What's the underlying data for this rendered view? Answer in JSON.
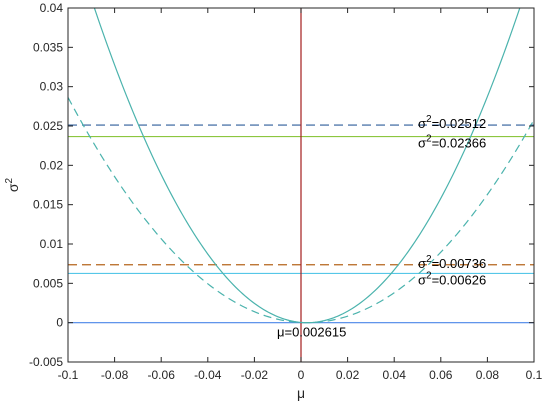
{
  "chart_data": {
    "type": "line",
    "xlabel": "μ",
    "ylabel": "σ²",
    "xlim": [
      -0.1,
      0.1
    ],
    "ylim": [
      -0.005,
      0.04
    ],
    "x_ticks": [
      -0.1,
      -0.08,
      -0.06,
      -0.04,
      -0.02,
      0,
      0.02,
      0.04,
      0.06,
      0.08,
      0.1
    ],
    "x_tick_labels": [
      "-0.1",
      "-0.08",
      "-0.06",
      "-0.04",
      "-0.02",
      "0",
      "0.02",
      "0.04",
      "0.06",
      "0.08",
      "0.1"
    ],
    "y_ticks": [
      -0.005,
      0,
      0.005,
      0.01,
      0.015,
      0.02,
      0.025,
      0.03,
      0.035,
      0.04
    ],
    "y_tick_labels": [
      "-0.005",
      "0",
      "0.005",
      "0.01",
      "0.015",
      "0.02",
      "0.025",
      "0.03",
      "0.035",
      "0.04"
    ],
    "grid": false,
    "curves": [
      {
        "style": "solid",
        "color": "#4bb3ad",
        "vertex_x": 0.002615,
        "coefficient": 4.8
      },
      {
        "style": "dashed",
        "color": "#4bb3ad",
        "vertex_x": 0.002615,
        "coefficient": 2.72
      }
    ],
    "hlines": [
      {
        "y": 0.02512,
        "style": "dashed",
        "color": "#2e5c9a",
        "label_line": "σ",
        "label_sup": "2",
        "label_value": "=0.02512"
      },
      {
        "y": 0.02366,
        "style": "solid",
        "color": "#8cc63f",
        "label_line": "σ",
        "label_sup": "2",
        "label_value": "=0.02366"
      },
      {
        "y": 0.00736,
        "style": "dashed",
        "color": "#b5651d",
        "label_line": "σ",
        "label_sup": "2",
        "label_value": "=0.00736"
      },
      {
        "y": 0.00626,
        "style": "solid",
        "color": "#56c7e8",
        "label_line": "σ",
        "label_sup": "2",
        "label_value": "=0.00626"
      },
      {
        "y": 0.0,
        "style": "solid",
        "color": "#4a86e8",
        "label_line": "",
        "label_sup": "",
        "label_value": ""
      }
    ],
    "vline": {
      "x": 0.0,
      "color": "#a31d1d"
    },
    "annotation": "μ=0.002615"
  }
}
